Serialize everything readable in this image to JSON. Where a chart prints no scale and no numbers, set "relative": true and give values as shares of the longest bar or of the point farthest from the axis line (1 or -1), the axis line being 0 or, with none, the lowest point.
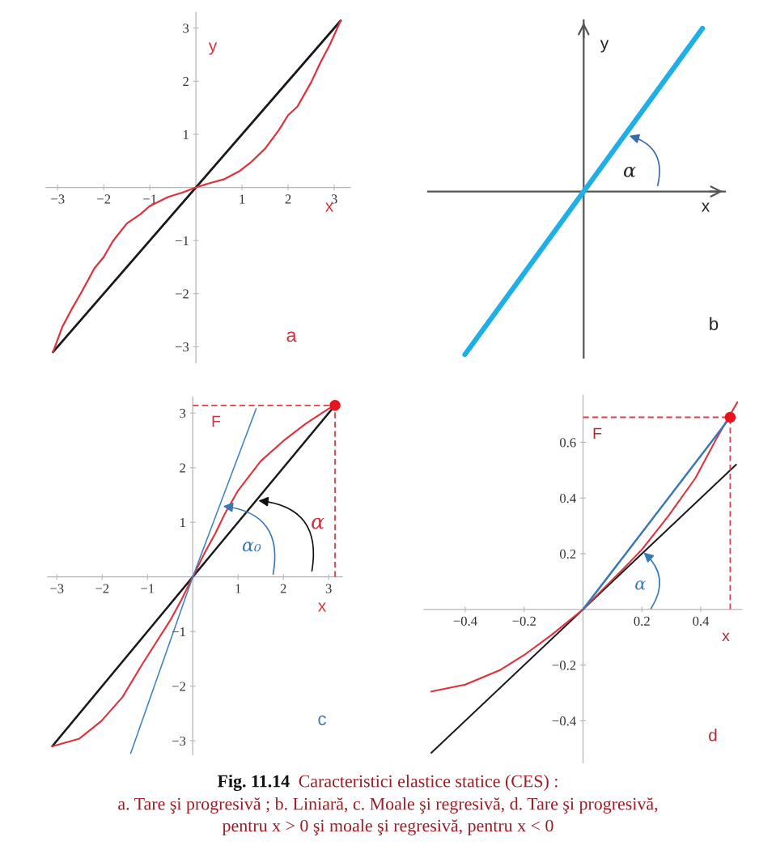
{
  "chart_data": [
    {
      "type": "line",
      "xlabel": "x",
      "ylabel": "y",
      "xlim": [
        -3.25,
        3.35
      ],
      "ylim": [
        -3.3,
        3.3
      ],
      "xticks": [
        {
          "value": -3,
          "label": "−3"
        },
        {
          "value": -2,
          "label": "−2"
        },
        {
          "value": -1,
          "label": "−1"
        },
        1,
        2,
        3
      ],
      "yticks": [
        {
          "value": -3,
          "label": "−3"
        },
        {
          "value": -2,
          "label": "−2"
        },
        {
          "value": -1,
          "label": "−1"
        },
        1,
        2,
        3
      ],
      "series": [
        {
          "color": "#1a1a1a",
          "x": [
            -3.1,
            3.14
          ],
          "values": [
            -3.1,
            3.14
          ]
        },
        {
          "color": "#e0303c",
          "x": [
            -3.1,
            -2.9,
            -2.7,
            -2.5,
            -2.2,
            -2.0,
            -1.8,
            -1.5,
            -1.2,
            -1.0,
            -0.6,
            -0.3,
            0,
            0.3,
            0.6,
            0.95,
            1.2,
            1.5,
            1.8,
            2.0,
            2.2,
            2.5,
            2.7,
            2.9,
            3.14
          ],
          "values": [
            -3.1,
            -2.63,
            -2.3,
            -2.0,
            -1.52,
            -1.31,
            -1.01,
            -0.68,
            -0.5,
            -0.35,
            -0.18,
            -0.1,
            0,
            0.08,
            0.15,
            0.31,
            0.48,
            0.73,
            1.08,
            1.36,
            1.52,
            1.98,
            2.35,
            2.68,
            3.14
          ]
        }
      ],
      "annotations": [
        "a"
      ]
    },
    {
      "type": "line",
      "relative": true,
      "categories": [
        null,
        null,
        null
      ],
      "xlabel": "x",
      "ylabel": "y",
      "series": [
        {
          "color": "#1eaee8",
          "values": [
            -1,
            0,
            1
          ]
        }
      ],
      "annotations": [
        "α",
        "b"
      ]
    },
    {
      "type": "line",
      "xlabel": "x",
      "xlim": [
        -3.2,
        3.3
      ],
      "ylim": [
        -3.25,
        3.3
      ],
      "xticks": [
        {
          "value": -3,
          "label": "−3"
        },
        {
          "value": -2,
          "label": "−2"
        },
        {
          "value": -1,
          "label": "−1"
        },
        1,
        2,
        3
      ],
      "yticks": [
        {
          "value": -3,
          "label": "−3"
        },
        {
          "value": -2,
          "label": "−2"
        },
        {
          "value": -1,
          "label": "−1"
        },
        1,
        2,
        3
      ],
      "series": [
        {
          "color": "#1a1a1a",
          "x": [
            -3.1,
            3.1
          ],
          "values": [
            -3.1,
            3.1
          ]
        },
        {
          "color": "#e0303c",
          "x": [
            -3.1,
            -2.5,
            -2.02,
            -1.55,
            -1.13,
            -0.77,
            -0.5,
            -0.25,
            0,
            0.25,
            0.5,
            0.71,
            1.0,
            1.5,
            2.0,
            2.5,
            3.0,
            3.14
          ],
          "values": [
            -3.1,
            -2.96,
            -2.64,
            -2.2,
            -1.62,
            -1.15,
            -0.8,
            -0.42,
            0,
            0.42,
            0.8,
            1.16,
            1.58,
            2.12,
            2.49,
            2.81,
            3.08,
            3.14
          ]
        },
        {
          "color": "#3a80c0",
          "x": [
            -1.37,
            0,
            1.4
          ],
          "values": [
            -3.23,
            0,
            3.08
          ]
        },
        {
          "color": "#d8404c",
          "line_style": "dashed",
          "x": [
            0,
            3.14,
            3.14
          ],
          "values": [
            3.14,
            3.14,
            0
          ]
        },
        {
          "type": "scatter",
          "marker": "circle",
          "color": "#e8141c",
          "x": [
            3.14
          ],
          "values": [
            3.14
          ]
        }
      ],
      "annotations": [
        "F",
        {
          "text": "α",
          "x": 1.4,
          "y": 1.4
        },
        {
          "text": "α₀",
          "x": 0.62,
          "y": 1.3
        },
        "c"
      ]
    },
    {
      "type": "line",
      "xlabel": "x",
      "xlim": [
        -0.54,
        0.54
      ],
      "ylim": [
        -0.55,
        0.77
      ],
      "xticks": [
        {
          "value": -0.4,
          "label": "−0.4"
        },
        {
          "value": -0.2,
          "label": "−0.2"
        },
        0.2,
        0.4
      ],
      "yticks": [
        {
          "value": -0.4,
          "label": "−0.4"
        },
        {
          "value": -0.2,
          "label": "−0.2"
        },
        0.2,
        0.4,
        0.6
      ],
      "series": [
        {
          "color": "#1a1a1a",
          "x": [
            -0.515,
            0.52
          ],
          "values": [
            -0.515,
            0.52
          ]
        },
        {
          "color": "#e0303c",
          "x": [
            -0.515,
            -0.4,
            -0.28,
            -0.2,
            -0.106,
            0,
            0.069,
            0.124,
            0.2,
            0.29,
            0.382,
            0.455,
            0.524
          ],
          "values": [
            -0.295,
            -0.27,
            -0.217,
            -0.164,
            -0.091,
            0,
            0.074,
            0.132,
            0.215,
            0.336,
            0.472,
            0.617,
            0.744
          ]
        },
        {
          "color": "#3a78b5",
          "x": [
            0,
            0.5
          ],
          "values": [
            0,
            0.69
          ]
        },
        {
          "color": "#d8404c",
          "line_style": "dashed",
          "x": [
            0,
            0.5,
            0.5
          ],
          "values": [
            0.69,
            0.69,
            0
          ]
        },
        {
          "type": "scatter",
          "marker": "circle",
          "color": "#e8141c",
          "x": [
            0.5
          ],
          "values": [
            0.69
          ]
        }
      ],
      "annotations": [
        "F",
        {
          "text": "α",
          "x": 0.2,
          "y": 0.21
        },
        "d"
      ]
    },
    {
      "type": "other",
      "title": "Fig. 11.14",
      "subtitle": "Caracteristici elastice statice (CES) :",
      "annotations": [
        "a. Tare şi progresivă ; b. Liniară, c. Moale şi regresivă, d. Tare şi progresivă,",
        "pentru x > 0 şi moale şi regresivă, pentru x < 0"
      ]
    }
  ]
}
